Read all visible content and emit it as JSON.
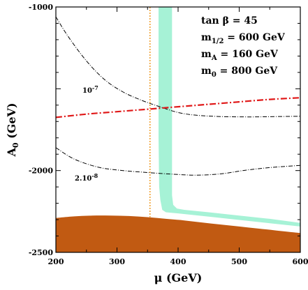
{
  "chart_data": {
    "type": "line",
    "xlabel": "μ (GeV)",
    "ylabel": "A₀ (GeV)",
    "xlim": [
      200,
      600
    ],
    "ylim": [
      -2500,
      -1000
    ],
    "xticks": [
      200,
      300,
      400,
      500,
      600
    ],
    "yticks": [
      -2500,
      -2000,
      -1000
    ],
    "x_tick_labels": [
      "200",
      "300",
      "400",
      "500",
      "600"
    ],
    "y_tick_labels": [
      "-2500",
      "-2000",
      "-1000"
    ],
    "annotations": [
      "tan β = 45",
      "m1/2 = 600 GeV",
      "mA = 160 GeV",
      "m0 = 800 GeV"
    ],
    "contour_labels": {
      "upper": "10-7",
      "lower": "2.10-8"
    },
    "colors": {
      "excluded_region": "#c15a12",
      "relic_band": "#a6f2d6",
      "red_curve": "#e01818",
      "orange_line": "#f0a030",
      "contour": "#000000"
    },
    "excluded_region_boundary": {
      "x": [
        200,
        230,
        260,
        290,
        320,
        350,
        380,
        410,
        440,
        470,
        500,
        530,
        560,
        590,
        600
      ],
      "y": [
        -2290,
        -2280,
        -2275,
        -2275,
        -2278,
        -2285,
        -2295,
        -2305,
        -2318,
        -2330,
        -2342,
        -2354,
        -2366,
        -2378,
        -2382
      ]
    },
    "relic_band": {
      "x_left": [
        368,
        368,
        369,
        371,
        374,
        380,
        400,
        450,
        500,
        550,
        600
      ],
      "y_left": [
        -1000,
        -1800,
        -2100,
        -2180,
        -2240,
        -2255,
        -2262,
        -2282,
        -2302,
        -2322,
        -2342
      ],
      "x_right": [
        390,
        390,
        390,
        392,
        398,
        410,
        450,
        500,
        550,
        600
      ],
      "y_right": [
        -1000,
        -1800,
        -2150,
        -2210,
        -2232,
        -2240,
        -2255,
        -2275,
        -2295,
        -2320
      ]
    },
    "red_curve": {
      "x": [
        200,
        250,
        300,
        350,
        400,
        450,
        500,
        550,
        600
      ],
      "y": [
        -1675,
        -1655,
        -1640,
        -1625,
        -1610,
        -1595,
        -1580,
        -1565,
        -1555
      ]
    },
    "orange_line": {
      "x": 354
    },
    "contour_upper": {
      "name": "10-7",
      "x": [
        200,
        220,
        250,
        280,
        310,
        340,
        370,
        400,
        430,
        470,
        520,
        560,
        600
      ],
      "y": [
        -1060,
        -1180,
        -1330,
        -1445,
        -1520,
        -1570,
        -1610,
        -1645,
        -1662,
        -1670,
        -1672,
        -1670,
        -1668
      ]
    },
    "contour_lower": {
      "name": "2.10-8",
      "x": [
        200,
        230,
        270,
        310,
        350,
        390,
        430,
        470,
        510,
        550,
        600
      ],
      "y": [
        -1860,
        -1930,
        -1980,
        -2000,
        -2012,
        -2022,
        -2028,
        -2020,
        -1998,
        -1982,
        -1968
      ]
    }
  }
}
